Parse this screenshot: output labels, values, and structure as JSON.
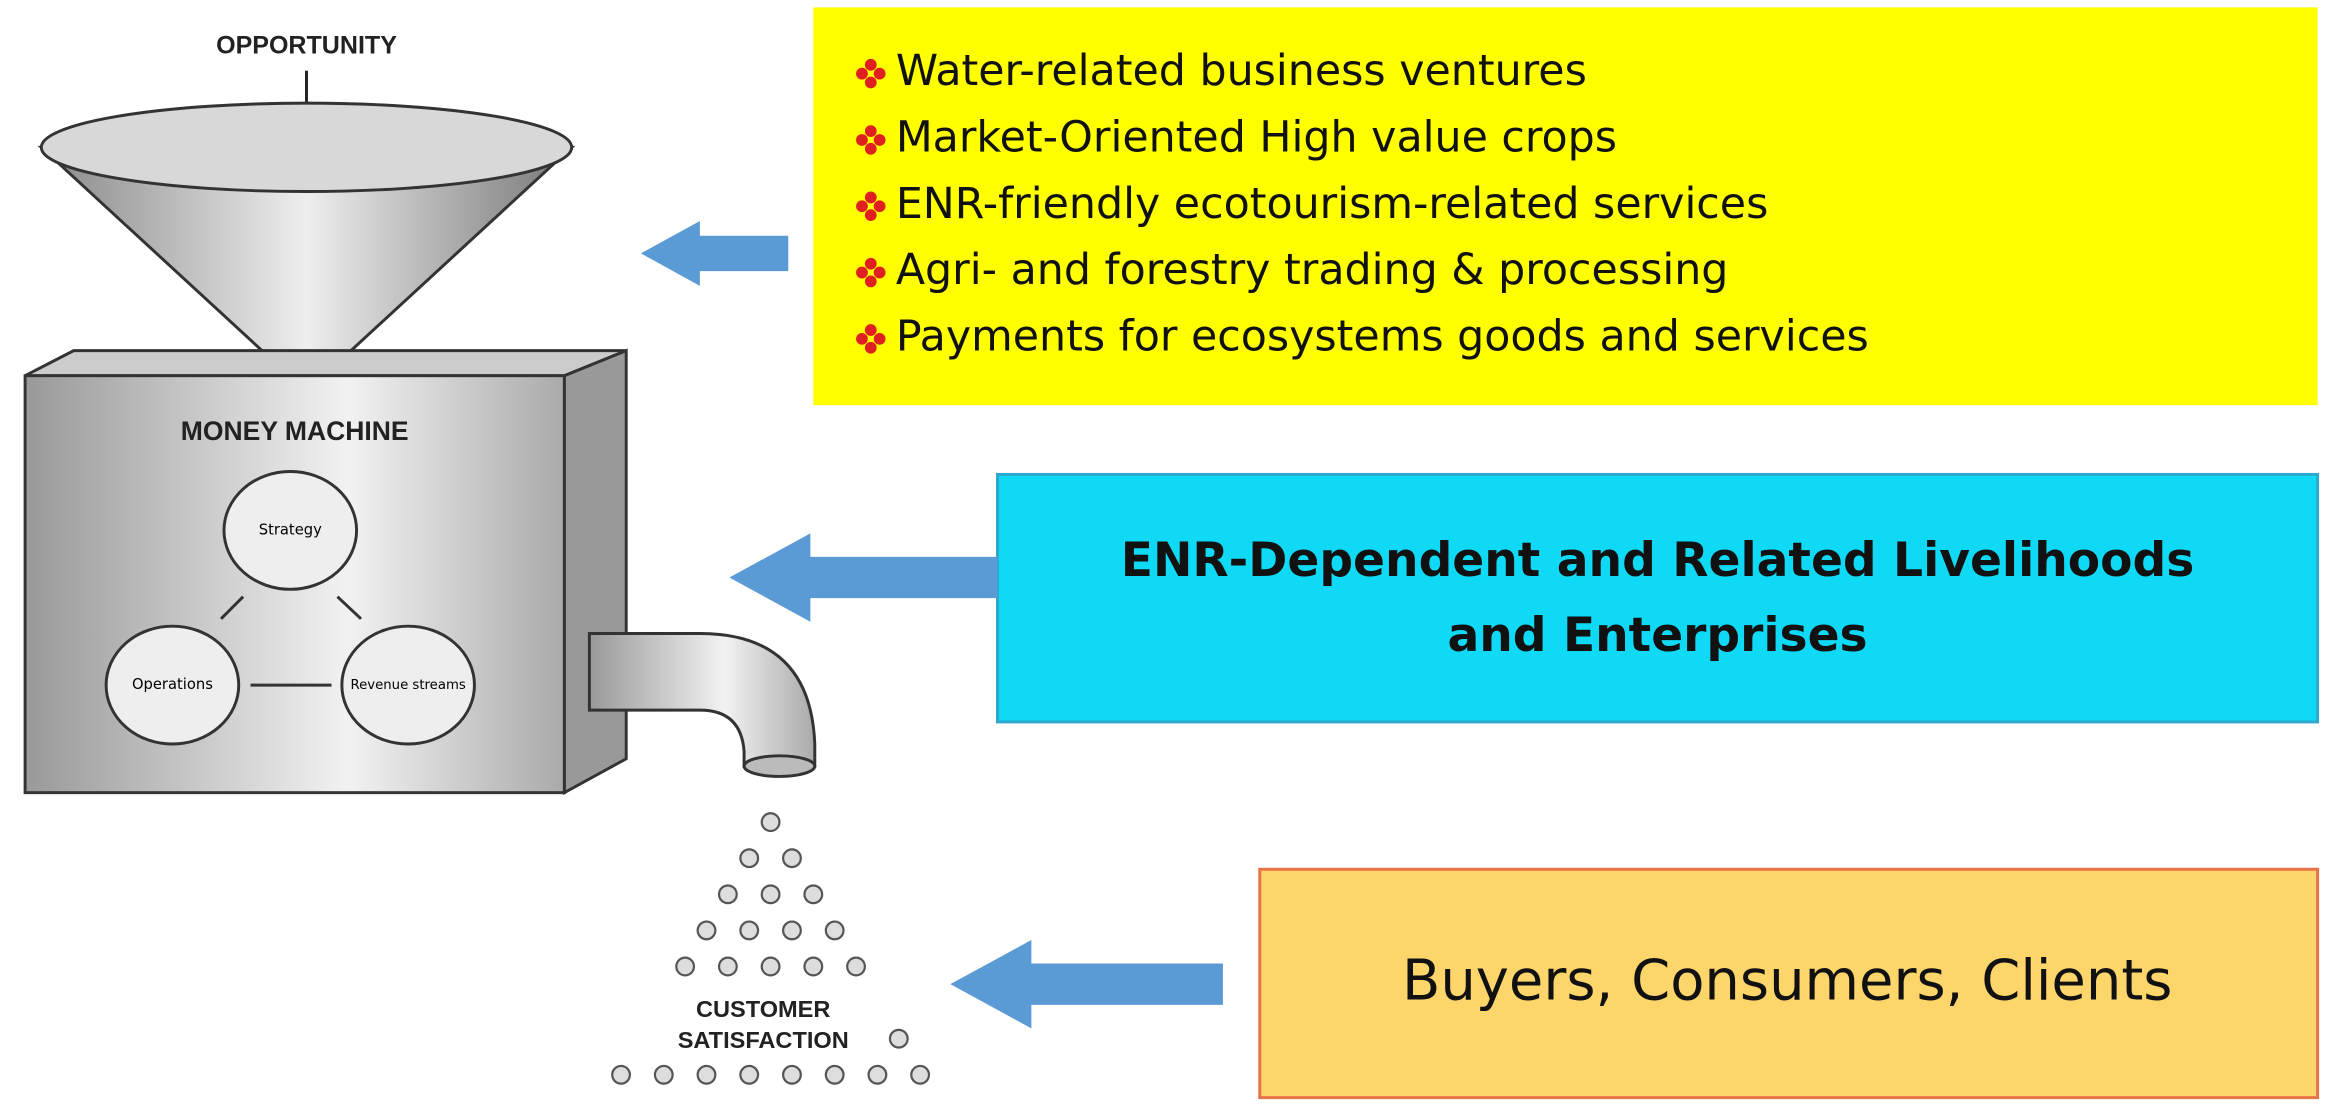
{
  "funnel_label": "OPPORTUNITY",
  "machine": {
    "title": "MONEY MACHINE",
    "nodes": [
      "Strategy",
      "Operations",
      "Revenue streams"
    ]
  },
  "output_label": [
    "CUSTOMER",
    "SATISFACTION"
  ],
  "opportunities": [
    "Water-related  business ventures",
    "Market-Oriented  High value crops",
    "ENR-friendly  ecotourism-related  services",
    "Agri- and forestry trading & processing",
    "Payments for ecosystems goods and services"
  ],
  "livelihoods": [
    "ENR-Dependent and Related Livelihoods",
    "and  Enterprises"
  ],
  "customers": "Buyers, Consumers, Clients"
}
